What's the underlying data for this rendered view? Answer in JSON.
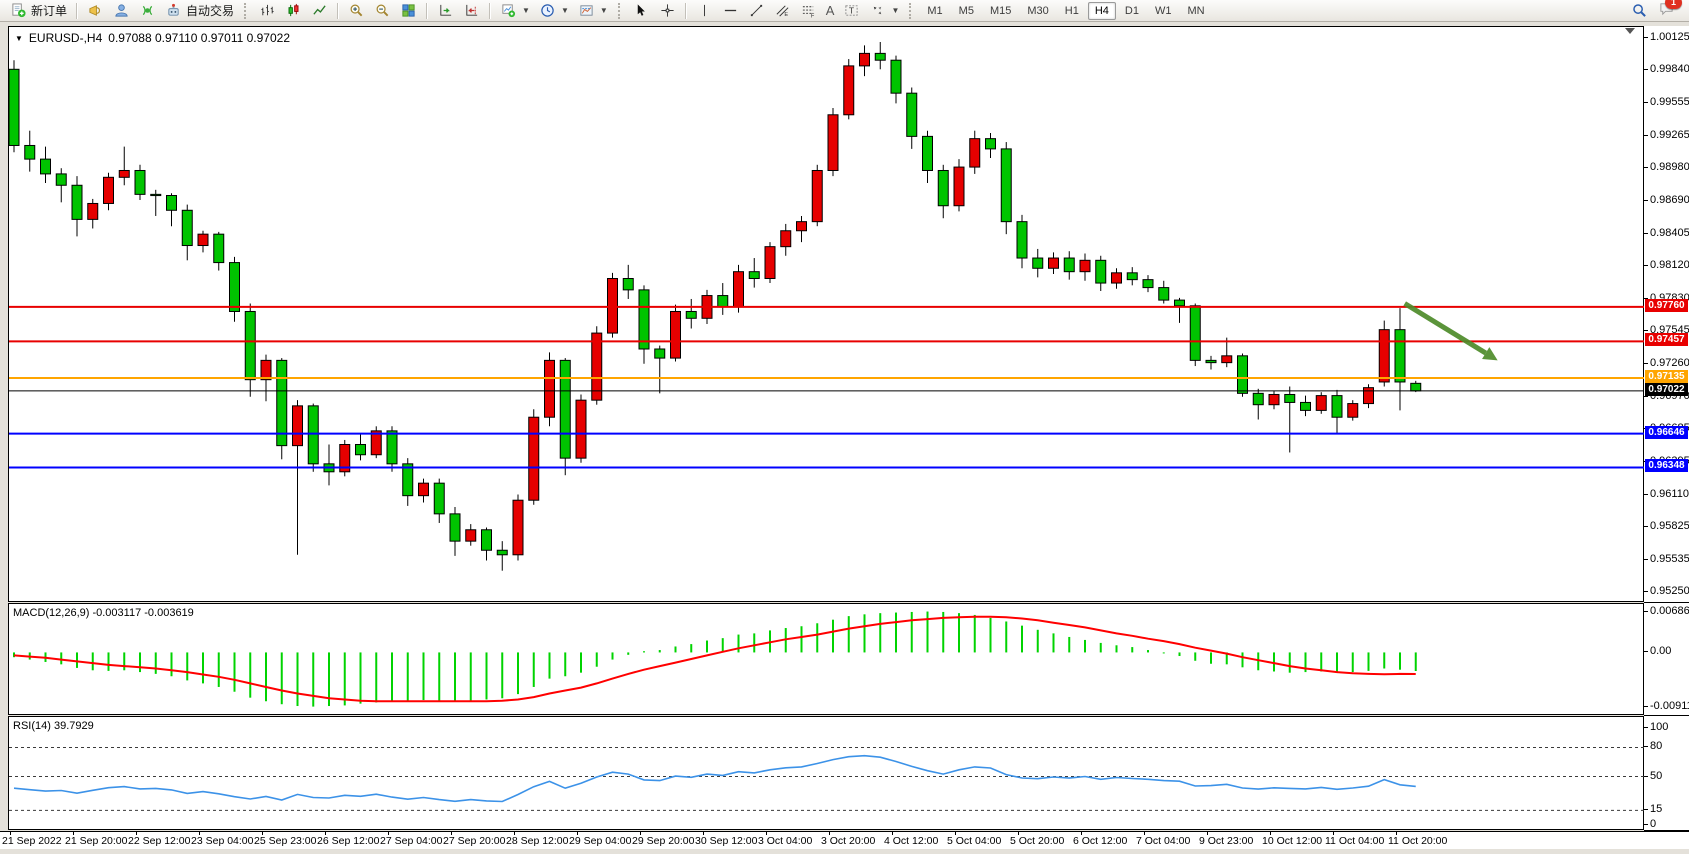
{
  "toolbar": {
    "new_order_label": "新订单",
    "autotrading_label": "自动交易",
    "timeframes": {
      "items": [
        "M1",
        "M5",
        "M15",
        "M30",
        "H1",
        "H4",
        "D1",
        "W1",
        "MN"
      ],
      "active": "H4"
    },
    "notification_badge": "1",
    "icon_names": [
      "new-order",
      "megaphone",
      "community",
      "signals",
      "autotrading",
      "bar-chart",
      "candlesticks",
      "line-chart",
      "zoom-in",
      "zoom-out",
      "tile-windows",
      "auto-scroll",
      "chart-shift",
      "new-chart",
      "periods",
      "templates",
      "cursor",
      "crosshair",
      "vertical-line",
      "horizontal-line",
      "trendline",
      "equidistant-channel",
      "fibonacci",
      "text",
      "text-label",
      "arrows",
      "search",
      "chat"
    ]
  },
  "chart": {
    "symbol_title": "EURUSD-,H4",
    "ohlc_text": "0.97088 0.97110 0.97011 0.97022",
    "macd_label": "MACD(12,26,9) -0.003117 -0.003619",
    "rsi_label": "RSI(14) 39.7929"
  },
  "chart_data": {
    "type": "candlestick",
    "symbol": "EURUSD-",
    "timeframe": "H4",
    "last_bar": {
      "open": 0.97088,
      "high": 0.9711,
      "low": 0.97011,
      "close": 0.97022
    },
    "ylim": [
      0.95156,
      1.00222
    ],
    "colors": {
      "bull": "#e60000",
      "bear": "#00c400",
      "wick": "#000000",
      "candle_border": "#000000",
      "macd_hist": "#00d300",
      "macd_signal": "#ff0000",
      "rsi": "#3c92e8",
      "arrow": "#4e8c2a"
    },
    "price_ticks": [
      "1.00125",
      "0.99840",
      "0.99555",
      "0.99265",
      "0.98980",
      "0.98690",
      "0.98405",
      "0.98120",
      "0.97830",
      "0.97545",
      "0.97260",
      "0.96970",
      "0.96685",
      "0.96395",
      "0.96110",
      "0.95825",
      "0.95535",
      "0.95250"
    ],
    "levels": [
      {
        "value": 0.9776,
        "label": "0.97760",
        "color": "#e80000",
        "width": 2
      },
      {
        "value": 0.97457,
        "label": "0.97457",
        "color": "#e80000",
        "width": 2
      },
      {
        "value": 0.97135,
        "label": "0.97135",
        "color": "#ffa500",
        "width": 2
      },
      {
        "value": 0.97022,
        "label": "0.97022",
        "color": "#000000",
        "width": 1
      },
      {
        "value": 0.96646,
        "label": "0.96646",
        "color": "#0000ff",
        "width": 2
      },
      {
        "value": 0.96348,
        "label": "0.96348",
        "color": "#0000ff",
        "width": 2
      }
    ],
    "annotation_arrow": {
      "from": {
        "bar": 88.3,
        "price": 0.9779
      },
      "to": {
        "bar": 94.2,
        "price": 0.9729
      }
    },
    "time_labels": [
      "21 Sep 2022",
      "21 Sep 20:00",
      "22 Sep 12:00",
      "23 Sep 04:00",
      "25 Sep 23:00",
      "26 Sep 12:00",
      "27 Sep 04:00",
      "27 Sep 20:00",
      "28 Sep 12:00",
      "29 Sep 04:00",
      "29 Sep 20:00",
      "30 Sep 12:00",
      "3 Oct 04:00",
      "3 Oct 20:00",
      "4 Oct 12:00",
      "5 Oct 04:00",
      "5 Oct 20:00",
      "6 Oct 12:00",
      "7 Oct 04:00",
      "9 Oct 23:00",
      "10 Oct 12:00",
      "11 Oct 04:00",
      "11 Oct 20:00"
    ],
    "bars_per_label": 4,
    "candles_ohlc": [
      [
        0.9985,
        0.9993,
        0.9912,
        0.9918
      ],
      [
        0.9918,
        0.9931,
        0.9895,
        0.9906
      ],
      [
        0.9906,
        0.9917,
        0.9885,
        0.9893
      ],
      [
        0.9893,
        0.9898,
        0.9868,
        0.9883
      ],
      [
        0.9883,
        0.9891,
        0.9838,
        0.9853
      ],
      [
        0.9853,
        0.9871,
        0.9845,
        0.9867
      ],
      [
        0.9867,
        0.9894,
        0.9861,
        0.989
      ],
      [
        0.989,
        0.9917,
        0.9883,
        0.9896
      ],
      [
        0.9896,
        0.9901,
        0.987,
        0.9875
      ],
      [
        0.9875,
        0.9879,
        0.9856,
        0.9874
      ],
      [
        0.9874,
        0.9876,
        0.9847,
        0.9861
      ],
      [
        0.9861,
        0.9866,
        0.9817,
        0.983
      ],
      [
        0.983,
        0.9843,
        0.9824,
        0.984
      ],
      [
        0.984,
        0.9842,
        0.9808,
        0.9815
      ],
      [
        0.9815,
        0.982,
        0.9763,
        0.9772
      ],
      [
        0.9772,
        0.9779,
        0.9697,
        0.9712
      ],
      [
        0.9712,
        0.9734,
        0.9693,
        0.9729
      ],
      [
        0.9729,
        0.9731,
        0.9642,
        0.9654
      ],
      [
        0.9654,
        0.9694,
        0.9558,
        0.9689
      ],
      [
        0.9689,
        0.9691,
        0.9631,
        0.9638
      ],
      [
        0.9638,
        0.9655,
        0.9619,
        0.9631
      ],
      [
        0.9631,
        0.9659,
        0.9627,
        0.9655
      ],
      [
        0.9655,
        0.9665,
        0.9641,
        0.9646
      ],
      [
        0.9646,
        0.9671,
        0.9643,
        0.9667
      ],
      [
        0.9667,
        0.9671,
        0.9631,
        0.9638
      ],
      [
        0.9638,
        0.9643,
        0.9601,
        0.961
      ],
      [
        0.961,
        0.9625,
        0.9604,
        0.9621
      ],
      [
        0.9621,
        0.9625,
        0.9586,
        0.9594
      ],
      [
        0.9594,
        0.96,
        0.9557,
        0.957
      ],
      [
        0.957,
        0.9585,
        0.9566,
        0.958
      ],
      [
        0.958,
        0.9582,
        0.9553,
        0.9562
      ],
      [
        0.9562,
        0.957,
        0.9544,
        0.9558
      ],
      [
        0.9558,
        0.9611,
        0.9553,
        0.9606
      ],
      [
        0.9606,
        0.9686,
        0.9602,
        0.9679
      ],
      [
        0.9679,
        0.9736,
        0.9671,
        0.9729
      ],
      [
        0.9729,
        0.9731,
        0.9628,
        0.9643
      ],
      [
        0.9643,
        0.9699,
        0.9639,
        0.9694
      ],
      [
        0.9694,
        0.9759,
        0.969,
        0.9753
      ],
      [
        0.9753,
        0.9806,
        0.9749,
        0.9801
      ],
      [
        0.9801,
        0.9813,
        0.9783,
        0.9791
      ],
      [
        0.9791,
        0.9795,
        0.9726,
        0.9739
      ],
      [
        0.9739,
        0.9742,
        0.97,
        0.9731
      ],
      [
        0.9731,
        0.9778,
        0.9728,
        0.9772
      ],
      [
        0.9772,
        0.9783,
        0.9757,
        0.9766
      ],
      [
        0.9766,
        0.9791,
        0.9761,
        0.9786
      ],
      [
        0.9786,
        0.9797,
        0.9769,
        0.9776
      ],
      [
        0.9776,
        0.9813,
        0.9771,
        0.9807
      ],
      [
        0.9807,
        0.9819,
        0.9793,
        0.9801
      ],
      [
        0.9801,
        0.9833,
        0.9797,
        0.9829
      ],
      [
        0.9829,
        0.9849,
        0.9821,
        0.9843
      ],
      [
        0.9843,
        0.9856,
        0.9833,
        0.9851
      ],
      [
        0.9851,
        0.9901,
        0.9847,
        0.9896
      ],
      [
        0.9896,
        0.9951,
        0.9891,
        0.9945
      ],
      [
        0.9945,
        0.9994,
        0.9941,
        0.9988
      ],
      [
        0.9988,
        1.0006,
        0.9979,
        0.9999
      ],
      [
        0.9999,
        1.0009,
        0.9985,
        0.9993
      ],
      [
        0.9993,
        0.9997,
        0.9955,
        0.9964
      ],
      [
        0.9964,
        0.9969,
        0.9915,
        0.9926
      ],
      [
        0.9926,
        0.9931,
        0.9885,
        0.9896
      ],
      [
        0.9896,
        0.9901,
        0.9854,
        0.9865
      ],
      [
        0.9865,
        0.9906,
        0.986,
        0.9899
      ],
      [
        0.9899,
        0.9931,
        0.9893,
        0.9924
      ],
      [
        0.9924,
        0.9929,
        0.9907,
        0.9915
      ],
      [
        0.9915,
        0.9921,
        0.984,
        0.9851
      ],
      [
        0.9851,
        0.9857,
        0.981,
        0.9819
      ],
      [
        0.9819,
        0.9827,
        0.9802,
        0.981
      ],
      [
        0.981,
        0.9824,
        0.9805,
        0.9819
      ],
      [
        0.9819,
        0.9825,
        0.98,
        0.9807
      ],
      [
        0.9807,
        0.9823,
        0.9799,
        0.9817
      ],
      [
        0.9817,
        0.9821,
        0.979,
        0.9797
      ],
      [
        0.9797,
        0.981,
        0.9792,
        0.9806
      ],
      [
        0.9806,
        0.9811,
        0.9795,
        0.98
      ],
      [
        0.98,
        0.9804,
        0.9789,
        0.9793
      ],
      [
        0.9793,
        0.9799,
        0.9779,
        0.9782
      ],
      [
        0.9782,
        0.9784,
        0.9762,
        0.9777
      ],
      [
        0.9777,
        0.9779,
        0.9724,
        0.9729
      ],
      [
        0.9729,
        0.9733,
        0.9721,
        0.9727
      ],
      [
        0.9727,
        0.9749,
        0.9723,
        0.9733
      ],
      [
        0.9733,
        0.9735,
        0.9697,
        0.97
      ],
      [
        0.97,
        0.9704,
        0.9677,
        0.969
      ],
      [
        0.969,
        0.9702,
        0.9686,
        0.9699
      ],
      [
        0.9699,
        0.9706,
        0.9648,
        0.9692
      ],
      [
        0.9692,
        0.9698,
        0.968,
        0.9685
      ],
      [
        0.9685,
        0.9701,
        0.9682,
        0.9698
      ],
      [
        0.9698,
        0.9703,
        0.9665,
        0.9679
      ],
      [
        0.9679,
        0.9694,
        0.9676,
        0.9691
      ],
      [
        0.9691,
        0.9708,
        0.9687,
        0.9705
      ],
      [
        0.971,
        0.9764,
        0.9706,
        0.9756
      ],
      [
        0.9756,
        0.9775,
        0.9685,
        0.971
      ],
      [
        0.97088,
        0.9711,
        0.97011,
        0.97022
      ]
    ],
    "subwindows": [
      {
        "type": "histogram+line",
        "name": "MACD",
        "params": [
          12,
          26,
          9
        ],
        "last_values": [
          -0.003117,
          -0.003619
        ],
        "ylim": [
          -0.010678,
          0.008136
        ],
        "axis_ticks": [
          "0.006868",
          "0.00",
          "-0.009114"
        ],
        "histogram": [
          -0.0008,
          -0.0012,
          -0.0016,
          -0.002,
          -0.0026,
          -0.003,
          -0.0031,
          -0.003,
          -0.0033,
          -0.0036,
          -0.004,
          -0.0047,
          -0.0052,
          -0.0058,
          -0.0066,
          -0.0076,
          -0.0082,
          -0.0087,
          -0.009,
          -0.0091,
          -0.009,
          -0.0089,
          -0.0086,
          -0.0084,
          -0.0082,
          -0.0081,
          -0.008,
          -0.0081,
          -0.0083,
          -0.0082,
          -0.0079,
          -0.0077,
          -0.007,
          -0.0058,
          -0.0044,
          -0.004,
          -0.0034,
          -0.0024,
          -0.0012,
          -0.0004,
          0.0002,
          0.0004,
          0.001,
          0.0014,
          0.002,
          0.0024,
          0.003,
          0.0032,
          0.0037,
          0.0041,
          0.0044,
          0.0049,
          0.0055,
          0.0061,
          0.0064,
          0.0066,
          0.0067,
          0.0068,
          0.00687,
          0.0068,
          0.0066,
          0.0063,
          0.0058,
          0.0052,
          0.0045,
          0.0038,
          0.0032,
          0.0026,
          0.0021,
          0.0016,
          0.0012,
          0.0009,
          0.0004,
          0.0,
          -0.0006,
          -0.0014,
          -0.0019,
          -0.002,
          -0.0025,
          -0.003,
          -0.0032,
          -0.0034,
          -0.0033,
          -0.0032,
          -0.0034,
          -0.0033,
          -0.0031,
          -0.0027,
          -0.0029,
          -0.003117
        ],
        "signal": [
          -0.0005,
          -0.0007,
          -0.0009,
          -0.0012,
          -0.0015,
          -0.0018,
          -0.0021,
          -0.0023,
          -0.0025,
          -0.0027,
          -0.003,
          -0.0033,
          -0.0037,
          -0.0041,
          -0.0046,
          -0.0052,
          -0.0058,
          -0.0064,
          -0.0069,
          -0.0073,
          -0.0077,
          -0.0079,
          -0.0081,
          -0.0082,
          -0.0082,
          -0.0082,
          -0.0082,
          -0.0082,
          -0.0082,
          -0.0082,
          -0.0082,
          -0.0081,
          -0.0079,
          -0.0075,
          -0.0069,
          -0.0064,
          -0.0059,
          -0.0052,
          -0.0044,
          -0.0036,
          -0.0029,
          -0.0023,
          -0.0017,
          -0.0011,
          -0.0005,
          0.0001,
          0.0007,
          0.0012,
          0.0017,
          0.0022,
          0.0026,
          0.003,
          0.0035,
          0.004,
          0.0044,
          0.0048,
          0.0051,
          0.0054,
          0.0056,
          0.0058,
          0.0059,
          0.006,
          0.006,
          0.0059,
          0.0057,
          0.0054,
          0.005,
          0.0046,
          0.0042,
          0.0037,
          0.0032,
          0.0028,
          0.0023,
          0.0019,
          0.0014,
          0.0008,
          0.0003,
          -0.0002,
          -0.0008,
          -0.0013,
          -0.0018,
          -0.0023,
          -0.0027,
          -0.003,
          -0.0033,
          -0.0035,
          -0.0036,
          -0.00365,
          -0.0036,
          -0.003619
        ]
      },
      {
        "type": "line",
        "name": "RSI",
        "params": [
          14
        ],
        "last_value": 39.7929,
        "ylim": [
          -6.25,
          111.5
        ],
        "axis_ticks": [
          "100",
          "80",
          "50",
          "15",
          "0"
        ],
        "dashed_levels": [
          80,
          50,
          15
        ],
        "values": [
          38.0,
          36.4,
          35.0,
          35.6,
          32.8,
          35.8,
          38.5,
          39.6,
          37.2,
          37.8,
          36.2,
          32.6,
          34.4,
          32.2,
          29.2,
          26.8,
          29.4,
          25.8,
          31.6,
          28.4,
          27.8,
          30.6,
          29.6,
          31.8,
          28.8,
          26.6,
          28.4,
          26.2,
          24.4,
          26.2,
          24.8,
          24.2,
          31.4,
          39.5,
          45.0,
          38.0,
          43.0,
          49.5,
          54.5,
          52.5,
          46.5,
          45.8,
          50.5,
          49.2,
          52.5,
          51.2,
          55.0,
          53.8,
          57.0,
          59.0,
          60.0,
          63.5,
          67.5,
          70.5,
          71.5,
          70.0,
          65.5,
          60.5,
          56.0,
          52.5,
          57.0,
          60.0,
          58.8,
          52.0,
          48.5,
          47.8,
          49.5,
          48.4,
          50.0,
          47.2,
          49.0,
          48.0,
          47.2,
          45.8,
          45.2,
          40.2,
          40.6,
          42.0,
          38.2,
          37.0,
          38.4,
          37.8,
          37.2,
          38.8,
          36.8,
          38.2,
          40.0,
          46.8,
          41.5,
          39.7929
        ]
      }
    ]
  }
}
